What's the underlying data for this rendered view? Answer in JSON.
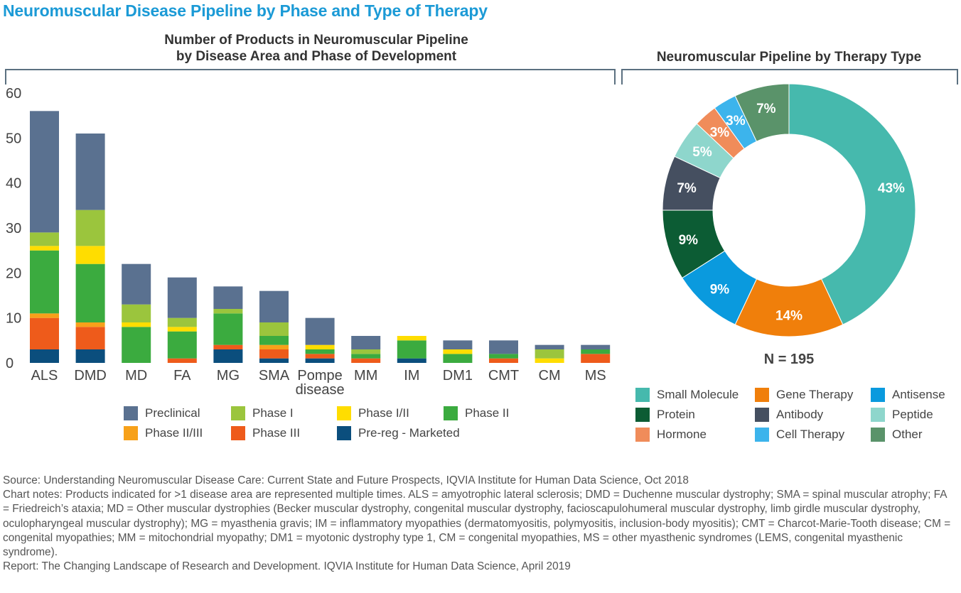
{
  "title": "Neuromuscular Disease Pipeline by Phase and Type of Therapy",
  "footer": {
    "source": "Source: Understanding Neuromuscular Disease Care: Current State and Future Prospects, IQVIA Institute for Human Data Science, Oct 2018",
    "notes": "Chart notes: Products indicated for >1 disease area are represented multiple times. ALS = amyotrophic lateral sclerosis; DMD = Duchenne muscular dystrophy; SMA = spinal muscular atrophy; FA = Friedreich’s ataxia; MD = Other muscular dystrophies (Becker muscular dystrophy, congenital muscular dystrophy, facioscapulohumeral muscular dystrophy, limb girdle muscular dystrophy, oculopharyngeal muscular dystrophy); MG = myasthenia gravis; IM = inflammatory myopathies (dermatomyositis, polymyositis, inclusion-body myositis); CMT = Charcot-Marie-Tooth disease; CM = congenital myopathies; MM = mitochondrial myopathy; DM1 = myotonic dystrophy type 1, CM = congenital myopathies, MS = other myasthenic syndromes (LEMS, congenital myasthenic syndrome).",
    "report": "Report: The Changing Landscape of Research and Development. IQVIA Institute for Human Data Science, April 2019"
  },
  "chart_data": [
    {
      "type": "bar",
      "stacked": true,
      "title": "Number of Products in Neuromuscular Pipeline by Disease Area and Phase of Development",
      "title_lines": [
        "Number of Products in Neuromuscular Pipeline",
        "by Disease Area and Phase of Development"
      ],
      "xlabel": "",
      "ylabel": "",
      "ylim": [
        0,
        60
      ],
      "yticks": [
        0,
        10,
        20,
        30,
        40,
        50,
        60
      ],
      "grid": false,
      "legend_position": "bottom",
      "categories": [
        "ALS",
        "DMD",
        "MD",
        "FA",
        "MG",
        "SMA",
        "Pompe disease",
        "MM",
        "IM",
        "DM1",
        "CMT",
        "CM",
        "MS"
      ],
      "category_lines": [
        [
          "ALS"
        ],
        [
          "DMD"
        ],
        [
          "MD"
        ],
        [
          "FA"
        ],
        [
          "MG"
        ],
        [
          "SMA"
        ],
        [
          "Pompe",
          "disease"
        ],
        [
          "MM"
        ],
        [
          "IM"
        ],
        [
          "DM1"
        ],
        [
          "CMT"
        ],
        [
          "CM"
        ],
        [
          "MS"
        ]
      ],
      "series": [
        {
          "name": "Pre-reg - Marketed",
          "color": "#0b4e7d",
          "values": [
            3,
            3,
            0,
            0,
            3,
            1,
            1,
            0,
            1,
            0,
            0,
            0,
            0
          ]
        },
        {
          "name": "Phase III",
          "color": "#ee5b1b",
          "values": [
            7,
            5,
            0,
            1,
            1,
            2,
            1,
            1,
            0,
            0,
            1,
            0,
            2
          ]
        },
        {
          "name": "Phase II/III",
          "color": "#f7a11a",
          "values": [
            1,
            1,
            0,
            0,
            0,
            1,
            0,
            0,
            0,
            0,
            0,
            0,
            0
          ]
        },
        {
          "name": "Phase II",
          "color": "#3bab3f",
          "values": [
            14,
            13,
            8,
            6,
            7,
            2,
            1,
            1,
            4,
            2,
            1,
            0,
            1
          ]
        },
        {
          "name": "Phase I/II",
          "color": "#ffdd00",
          "values": [
            1,
            4,
            1,
            1,
            0,
            0,
            1,
            0,
            1,
            1,
            0,
            1,
            0
          ]
        },
        {
          "name": "Phase I",
          "color": "#9bc53d",
          "values": [
            3,
            8,
            4,
            2,
            1,
            3,
            0,
            1,
            0,
            0,
            0,
            2,
            0
          ]
        },
        {
          "name": "Preclinical",
          "color": "#5a7190",
          "values": [
            27,
            17,
            9,
            9,
            5,
            7,
            6,
            3,
            0,
            2,
            3,
            1,
            1
          ]
        }
      ],
      "legend_order": [
        "Preclinical",
        "Phase I",
        "Phase I/II",
        "Phase II",
        "Phase II/III",
        "Phase III",
        "Pre-reg - Marketed"
      ]
    },
    {
      "type": "pie",
      "donut": true,
      "title": "Neuromuscular Pipeline by Therapy Type",
      "total_label": "N = 195",
      "legend_position": "bottom",
      "slices": [
        {
          "name": "Small Molecule",
          "value": 43,
          "label": "43%",
          "color": "#46b9ad"
        },
        {
          "name": "Gene Therapy",
          "value": 14,
          "label": "14%",
          "color": "#f07f0b"
        },
        {
          "name": "Antisense",
          "value": 9,
          "label": "9%",
          "color": "#0a9ade"
        },
        {
          "name": "Protein",
          "value": 9,
          "label": "9%",
          "color": "#0c5c34"
        },
        {
          "name": "Antibody",
          "value": 7,
          "label": "7%",
          "color": "#454f60"
        },
        {
          "name": "Peptide",
          "value": 5,
          "label": "5%",
          "color": "#8ed6cc"
        },
        {
          "name": "Hormone",
          "value": 3,
          "label": "3%",
          "color": "#f08c5a"
        },
        {
          "name": "Cell Therapy",
          "value": 3,
          "label": "3%",
          "color": "#3cb4ec"
        },
        {
          "name": "Other",
          "value": 7,
          "label": "7%",
          "color": "#5a936a"
        }
      ]
    }
  ]
}
